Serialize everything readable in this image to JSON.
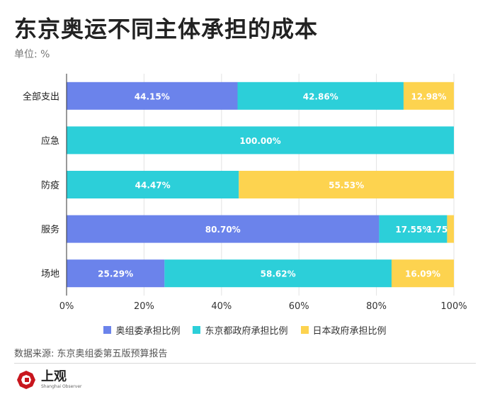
{
  "title": "东京奥运不同主体承担的成本",
  "unit_label": "单位: %",
  "source": "数据来源: 东京奥组委第五版预算报告",
  "brand": {
    "name": "上观",
    "sub": "Shanghai Observer"
  },
  "chart_data": {
    "type": "bar",
    "orientation": "horizontal",
    "stacked": true,
    "categories": [
      "全部支出",
      "应急",
      "防疫",
      "服务",
      "场地"
    ],
    "series": [
      {
        "name": "奥组委承担比例",
        "color": "#6b83eb",
        "values": [
          44.15,
          0,
          0,
          80.7,
          25.29
        ],
        "labels": [
          "44.15%",
          "",
          "",
          "80.70%",
          "25.29%"
        ]
      },
      {
        "name": "东京都政府承担比例",
        "color": "#2ccfd9",
        "values": [
          42.86,
          100.0,
          44.47,
          17.55,
          58.62
        ],
        "labels": [
          "42.86%",
          "100.00%",
          "44.47%",
          "17.55%",
          "58.62%"
        ]
      },
      {
        "name": "日本政府承担比例",
        "color": "#fdd34f",
        "values": [
          12.98,
          0,
          55.53,
          1.75,
          16.09
        ],
        "labels": [
          "12.98%",
          "",
          "55.53%",
          "1.75",
          "16.09%"
        ]
      }
    ],
    "xlim": [
      0,
      100
    ],
    "xticks": [
      "0%",
      "20%",
      "40%",
      "60%",
      "80%",
      "100%"
    ],
    "grid": true,
    "legend_position": "bottom"
  }
}
